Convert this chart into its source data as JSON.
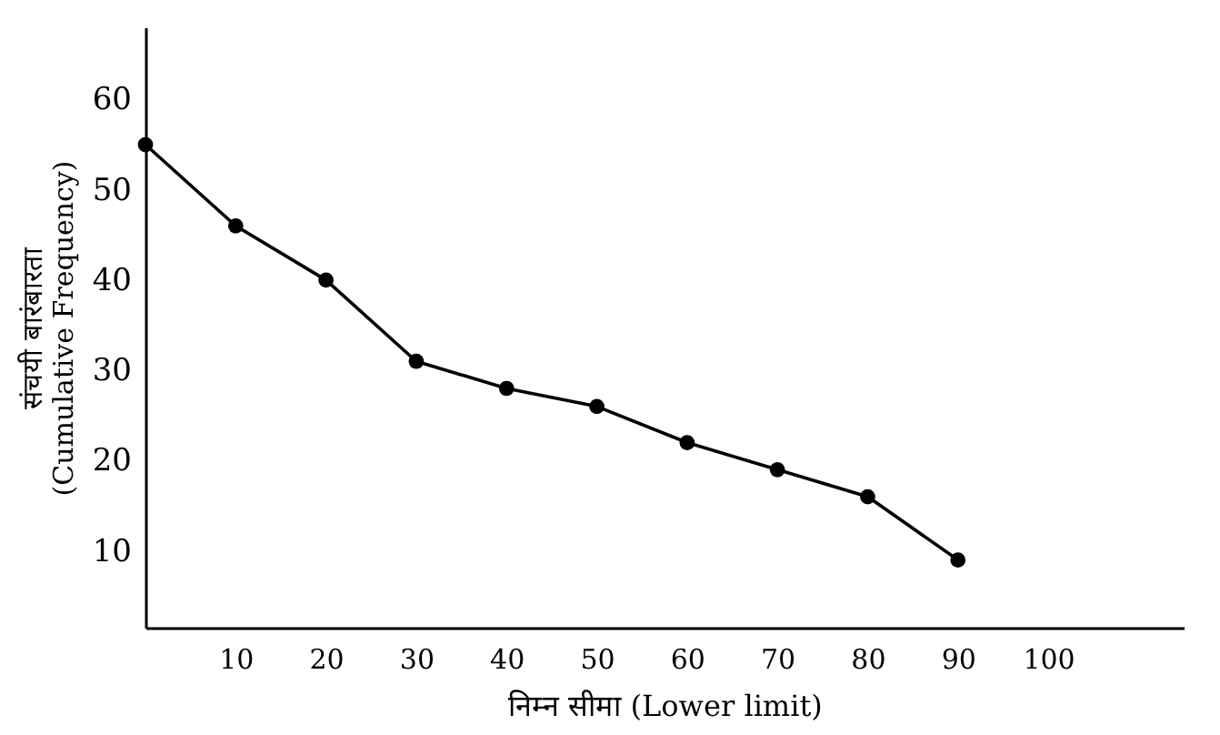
{
  "chart_data": {
    "type": "line",
    "xlabel": "निम्न सीमा (Lower limit)",
    "ylabel": "संचयी बारंबारता\n(Cumulative Frequency)",
    "x": [
      0,
      10,
      20,
      30,
      40,
      50,
      60,
      70,
      80,
      90
    ],
    "series": [
      {
        "color": "#000000",
        "values": [
          55,
          46,
          40,
          31,
          28,
          26,
          22,
          19,
          16,
          9
        ]
      }
    ],
    "xlim": [
      0,
      115
    ],
    "xticks": [
      10,
      20,
      30,
      40,
      50,
      60,
      70,
      80,
      90,
      100
    ],
    "ylim": [
      1.5,
      68
    ],
    "yticks": [
      10,
      20,
      30,
      40,
      50,
      60
    ],
    "grid": false,
    "marker": "circle",
    "line_style": "solid"
  }
}
